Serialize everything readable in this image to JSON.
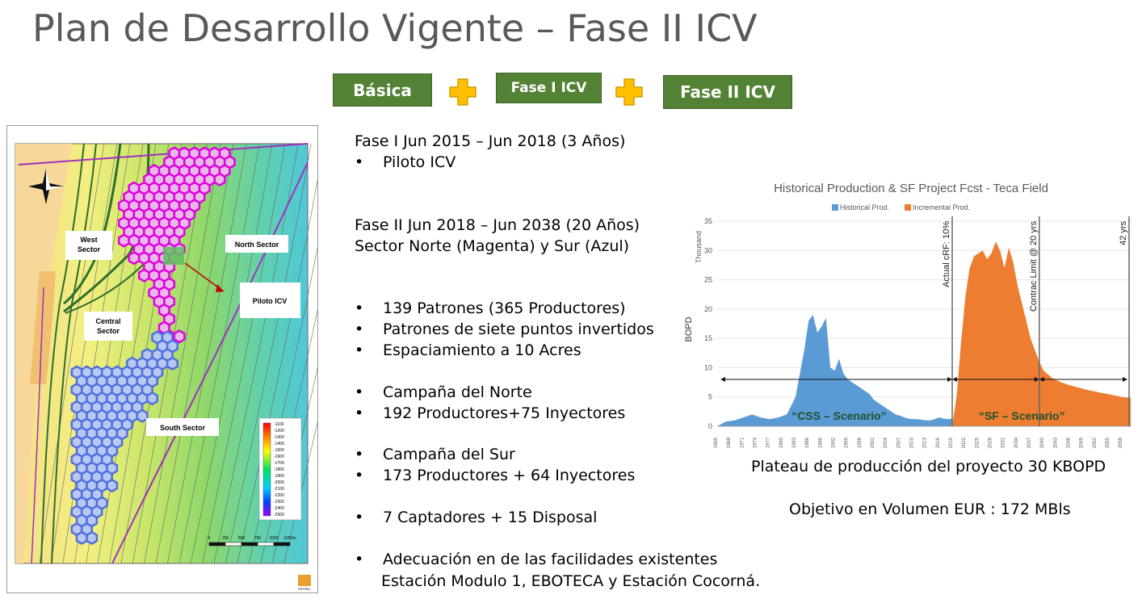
{
  "title": "Plan de Desarrollo Vigente – Fase II ICV",
  "phases": {
    "basica": "Básica",
    "fase1": "Fase I ICV",
    "fase2": "Fase II ICV"
  },
  "map": {
    "west_sector": [
      "West",
      "Sector"
    ],
    "central_sector": [
      "Central",
      "Sector"
    ],
    "north_sector": "North Sector",
    "south_sector": "South Sector",
    "piloto": "Piloto ICV",
    "legend_values": [
      "-1100",
      "-1200",
      "-1300",
      "-1400",
      "-1500",
      "-1600",
      "-1700",
      "-1800",
      "-1900",
      "-2000",
      "-2100",
      "-2200",
      "-2300",
      "-2400",
      "-2500"
    ],
    "scale_labels": [
      "0",
      "250",
      "500",
      "750",
      "1000",
      "1250m"
    ],
    "logo": "PETREL"
  },
  "text": {
    "fase1_line": "Fase I Jun 2015 – Jun 2018 (3 Años)",
    "fase1_bullet": "Piloto ICV",
    "fase2_line1": "Fase II Jun 2018 – Jun 2038 (20 Años)",
    "fase2_line2": "Sector Norte (Magenta) y Sur (Azul)",
    "bullets_a": [
      "139 Patrones (365 Productores)",
      "Patrones de siete puntos invertidos",
      "Espaciamiento a 10 Acres"
    ],
    "bullets_b": [
      "Campaña del Norte",
      "192 Productores+75 Inyectores"
    ],
    "bullets_c": [
      "Campaña del Sur",
      "173 Productores + 64 Inyectores"
    ],
    "bullets_d": [
      "7 Captadores + 15 Disposal"
    ],
    "bullets_e": [
      "Adecuación en de las facilidades existentes"
    ],
    "bullet_e_cont": "Estación Modulo 1, EBOTECA y  Estación Cocorná.",
    "bullet_char": "•"
  },
  "chart_data": {
    "type": "area",
    "title": "Historical Production & SF Project Fcst - Teca Field",
    "ylabel": "BOPD",
    "yunit": "Thousand",
    "ylim": [
      0,
      35
    ],
    "yticks": [
      0,
      5,
      10,
      15,
      20,
      25,
      30,
      35
    ],
    "xlim": [
      1965,
      2060
    ],
    "xticks": [
      1965,
      1968,
      1971,
      1974,
      1977,
      1980,
      1983,
      1986,
      1989,
      1992,
      1995,
      1998,
      2001,
      2004,
      2007,
      2010,
      2013,
      2016,
      2019,
      2022,
      2025,
      2028,
      2031,
      2034,
      2037,
      2040,
      2043,
      2046,
      2049,
      2052,
      2055,
      2058
    ],
    "vlines": [
      {
        "x": 2019,
        "label": "Actual cRF: 10%"
      },
      {
        "x": 2039,
        "label": "Contrac Limit @ 20 yrs"
      },
      {
        "x": 2061,
        "label": "42 yrs"
      }
    ],
    "annotations": [
      "“CSS – Scenario”",
      "“SF – Scenario”"
    ],
    "series": [
      {
        "name": "Historical Prod.",
        "color": "#5b9bd5",
        "x": [
          1965,
          1967,
          1969,
          1971,
          1973,
          1975,
          1977,
          1979,
          1981,
          1983,
          1984,
          1985,
          1986,
          1987,
          1988,
          1989,
          1990,
          1991,
          1992,
          1993,
          1994,
          1995,
          1996,
          1997,
          1998,
          1999,
          2000,
          2001,
          2002,
          2003,
          2004,
          2005,
          2006,
          2007,
          2008,
          2009,
          2010,
          2011,
          2012,
          2013,
          2014,
          2015,
          2016,
          2017,
          2018,
          2019
        ],
        "y": [
          0,
          0.8,
          1.0,
          1.5,
          2.0,
          1.5,
          1.2,
          1.5,
          2.0,
          5.0,
          9.0,
          13.0,
          18.0,
          19.0,
          16.0,
          17.0,
          18.5,
          10.0,
          9.5,
          11.5,
          9.0,
          8.0,
          7.5,
          7.0,
          6.5,
          6.0,
          5.5,
          4.5,
          4.0,
          3.5,
          3.0,
          2.5,
          2.0,
          1.8,
          1.5,
          1.3,
          1.2,
          1.2,
          1.1,
          1.0,
          1.0,
          1.2,
          1.5,
          1.3,
          1.2,
          1.3
        ]
      },
      {
        "name": "Incremental Prod.",
        "color": "#ed7d31",
        "x": [
          2019,
          2020,
          2021,
          2022,
          2023,
          2024,
          2025,
          2026,
          2027,
          2028,
          2029,
          2030,
          2031,
          2032,
          2033,
          2034,
          2035,
          2036,
          2037,
          2038,
          2039,
          2040,
          2042,
          2044,
          2046,
          2048,
          2050,
          2052,
          2054,
          2056,
          2058,
          2060
        ],
        "y": [
          0,
          5,
          14,
          22,
          27,
          29,
          29.5,
          30,
          28.5,
          29.5,
          31.5,
          30,
          27,
          30.5,
          28,
          24,
          21,
          18,
          15,
          13,
          11,
          9.5,
          8.2,
          7.5,
          7.0,
          6.6,
          6.2,
          5.9,
          5.6,
          5.3,
          5.0,
          4.8
        ]
      }
    ]
  },
  "captions": {
    "plateau": "Plateau de producción del proyecto 30 KBOPD",
    "objetivo": "Objetivo en Volumen EUR : 172 MBls"
  }
}
